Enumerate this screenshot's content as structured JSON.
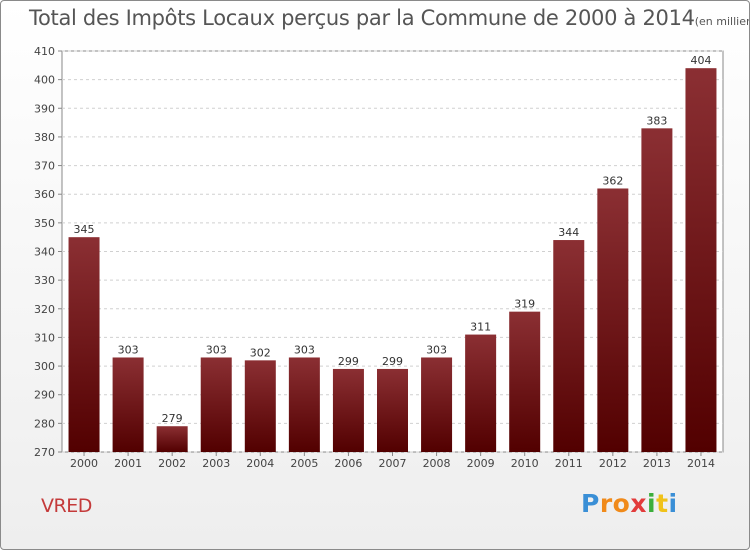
{
  "chart_data": {
    "type": "bar",
    "title": "Total des Impôts Locaux perçus par la Commune de 2000 à 2014",
    "subtitle": "(en milliers d'€)",
    "categories": [
      "2000",
      "2001",
      "2002",
      "2003",
      "2004",
      "2005",
      "2006",
      "2007",
      "2008",
      "2009",
      "2010",
      "2011",
      "2012",
      "2013",
      "2014"
    ],
    "values": [
      345,
      303,
      279,
      303,
      302,
      303,
      299,
      299,
      303,
      311,
      319,
      344,
      362,
      383,
      404
    ],
    "ylim": [
      270,
      410
    ],
    "yticks": [
      270,
      280,
      290,
      300,
      310,
      320,
      330,
      340,
      350,
      360,
      370,
      380,
      390,
      400,
      410
    ],
    "xlabel": "",
    "ylabel": "",
    "grid": true,
    "bar_color_top": "#8b2f33",
    "bar_color_bottom": "#520000"
  },
  "commune": "VRED",
  "logo": {
    "letters": [
      "P",
      "r",
      "o",
      "x",
      "i",
      "t",
      "i"
    ],
    "colors": [
      "#3a8fd6",
      "#f08a1a",
      "#f08a1a",
      "#e23b3b",
      "#3cae3c",
      "#f0c21a",
      "#3a8fd6"
    ]
  }
}
